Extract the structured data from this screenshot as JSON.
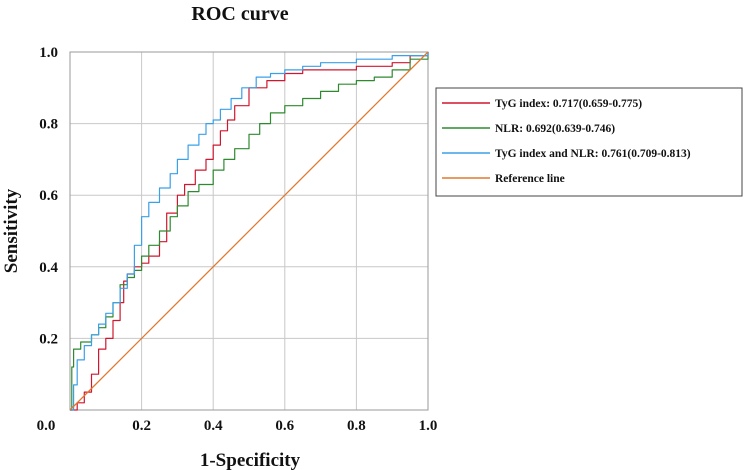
{
  "chart_data": {
    "type": "line",
    "title": "ROC curve",
    "xlabel": "1-Specificity",
    "ylabel": "Sensitivity",
    "xlim": [
      0,
      1
    ],
    "ylim": [
      0,
      1
    ],
    "grid": true,
    "legend_position": "right",
    "xticks": [
      "0.0",
      "0.2",
      "0.4",
      "0.6",
      "0.8",
      "1.0"
    ],
    "yticks": [
      "0.2",
      "0.4",
      "0.6",
      "0.8",
      "1.0"
    ],
    "origin_label": "0.0",
    "series": [
      {
        "name": "TyG index: 0.717(0.659-0.775)",
        "color": "#d0172f",
        "x": [
          0.0,
          0.02,
          0.04,
          0.06,
          0.08,
          0.1,
          0.12,
          0.14,
          0.15,
          0.16,
          0.18,
          0.2,
          0.22,
          0.25,
          0.27,
          0.3,
          0.32,
          0.35,
          0.38,
          0.4,
          0.42,
          0.44,
          0.46,
          0.5,
          0.55,
          0.6,
          0.65,
          0.7,
          0.8,
          0.9,
          0.95,
          1.0
        ],
        "y": [
          0.0,
          0.02,
          0.05,
          0.1,
          0.17,
          0.2,
          0.25,
          0.3,
          0.36,
          0.38,
          0.4,
          0.41,
          0.43,
          0.47,
          0.55,
          0.6,
          0.63,
          0.67,
          0.7,
          0.74,
          0.78,
          0.81,
          0.85,
          0.9,
          0.92,
          0.94,
          0.95,
          0.95,
          0.96,
          0.97,
          0.99,
          1.0
        ]
      },
      {
        "name": "NLR: 0.692(0.639-0.746)",
        "color": "#2f8a2f",
        "x": [
          0.0,
          0.005,
          0.01,
          0.03,
          0.06,
          0.08,
          0.1,
          0.12,
          0.14,
          0.16,
          0.18,
          0.2,
          0.22,
          0.25,
          0.28,
          0.3,
          0.33,
          0.36,
          0.4,
          0.43,
          0.46,
          0.5,
          0.53,
          0.56,
          0.6,
          0.65,
          0.7,
          0.75,
          0.8,
          0.85,
          0.9,
          0.95,
          1.0
        ],
        "y": [
          0.0,
          0.12,
          0.17,
          0.19,
          0.21,
          0.23,
          0.26,
          0.3,
          0.35,
          0.37,
          0.39,
          0.43,
          0.46,
          0.5,
          0.54,
          0.57,
          0.61,
          0.63,
          0.67,
          0.7,
          0.73,
          0.77,
          0.8,
          0.83,
          0.85,
          0.87,
          0.89,
          0.91,
          0.92,
          0.93,
          0.95,
          0.98,
          1.0
        ]
      },
      {
        "name": "TyG index and NLR: 0.761(0.709-0.813)",
        "color": "#3aa0e8",
        "x": [
          0.0,
          0.01,
          0.02,
          0.04,
          0.06,
          0.08,
          0.1,
          0.12,
          0.14,
          0.16,
          0.18,
          0.2,
          0.22,
          0.25,
          0.28,
          0.3,
          0.33,
          0.36,
          0.38,
          0.4,
          0.42,
          0.45,
          0.48,
          0.52,
          0.56,
          0.6,
          0.65,
          0.7,
          0.8,
          0.9,
          1.0
        ],
        "y": [
          0.0,
          0.07,
          0.14,
          0.18,
          0.21,
          0.24,
          0.27,
          0.3,
          0.34,
          0.38,
          0.46,
          0.54,
          0.58,
          0.62,
          0.66,
          0.7,
          0.74,
          0.77,
          0.8,
          0.81,
          0.84,
          0.87,
          0.9,
          0.93,
          0.94,
          0.95,
          0.96,
          0.97,
          0.98,
          0.99,
          1.0
        ]
      },
      {
        "name": "Reference line",
        "color": "#e07830",
        "x": [
          0.0,
          1.0
        ],
        "y": [
          0.0,
          1.0
        ]
      }
    ]
  }
}
